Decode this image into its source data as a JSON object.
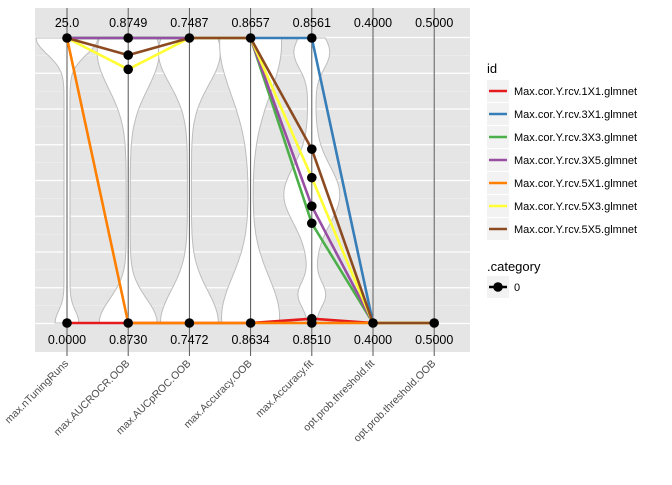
{
  "chart_data": {
    "type": "line",
    "subtype": "parallel-coordinates",
    "background": "#e5e5e5",
    "grid": true,
    "legend_position": "right",
    "axes": [
      {
        "label": "max.nTuningRuns",
        "top": "25.0",
        "bottom": "0.0000"
      },
      {
        "label": "max.AUCROCR.OOB",
        "top": "0.8749",
        "bottom": "0.8730"
      },
      {
        "label": "max.AUCpROC.OOB",
        "top": "0.7487",
        "bottom": "0.7472"
      },
      {
        "label": "max.Accuracy.OOB",
        "top": "0.8657",
        "bottom": "0.8634"
      },
      {
        "label": "max.Accuracy.fit",
        "top": "0.8561",
        "bottom": "0.8510"
      },
      {
        "label": "opt.prob.threshold.fit",
        "top": "0.4000",
        "bottom": "0.4000"
      },
      {
        "label": "opt.prob.threshold.OOB",
        "top": "0.5000",
        "bottom": "0.5000"
      }
    ],
    "ylim": [
      0,
      1
    ],
    "series": [
      {
        "name": "Max.cor.Y.rcv.1X1.glmnet",
        "color": "#e41a1c",
        "values": [
          0.0,
          0.0,
          0.0,
          0.0,
          0.015,
          0.0,
          0.0
        ]
      },
      {
        "name": "Max.cor.Y.rcv.3X1.glmnet",
        "color": "#377eb8",
        "values": [
          1.0,
          1.0,
          1.0,
          1.0,
          1.0,
          0.0,
          0.0
        ]
      },
      {
        "name": "Max.cor.Y.rcv.3X3.glmnet",
        "color": "#4daf4a",
        "values": [
          1.0,
          1.0,
          1.0,
          1.0,
          0.35,
          0.0,
          0.0
        ]
      },
      {
        "name": "Max.cor.Y.rcv.3X5.glmnet",
        "color": "#984ea3",
        "values": [
          1.0,
          1.0,
          1.0,
          1.0,
          0.41,
          0.0,
          0.0
        ]
      },
      {
        "name": "Max.cor.Y.rcv.5X1.glmnet",
        "color": "#ff7f00",
        "values": [
          1.0,
          0.0,
          0.0,
          0.0,
          0.0,
          0.0,
          0.0
        ]
      },
      {
        "name": "Max.cor.Y.rcv.5X3.glmnet",
        "color": "#ffff33",
        "values": [
          1.0,
          0.89,
          1.0,
          1.0,
          0.51,
          0.0,
          0.0
        ]
      },
      {
        "name": "Max.cor.Y.rcv.5X5.glmnet",
        "color": "#8c4a21",
        "values": [
          1.0,
          0.94,
          1.0,
          1.0,
          0.61,
          0.0,
          0.0
        ]
      }
    ],
    "points": [
      [
        0,
        0.0
      ],
      [
        0,
        1.0
      ],
      [
        1,
        0.0
      ],
      [
        1,
        1.0
      ],
      [
        1,
        0.94
      ],
      [
        1,
        0.89
      ],
      [
        2,
        0.0
      ],
      [
        2,
        1.0
      ],
      [
        3,
        0.0
      ],
      [
        3,
        1.0
      ],
      [
        4,
        0.0
      ],
      [
        4,
        0.015
      ],
      [
        4,
        1.0
      ],
      [
        4,
        0.61
      ],
      [
        4,
        0.51
      ],
      [
        4,
        0.41
      ],
      [
        4,
        0.35
      ],
      [
        5,
        0.0
      ],
      [
        6,
        0.0
      ]
    ],
    "legend": {
      "title": "id",
      "category_title": ".category",
      "category_label": "0"
    }
  }
}
